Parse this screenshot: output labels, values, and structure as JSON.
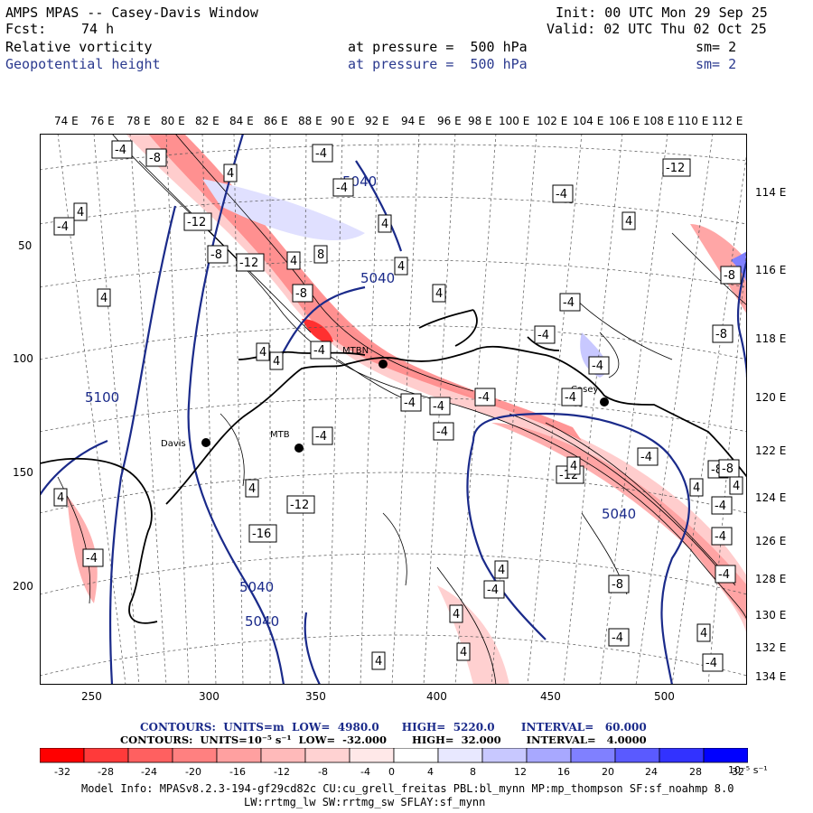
{
  "header": {
    "title": "AMPS MPAS -- Casey-Davis Window",
    "init": "Init: 00 UTC Mon 29 Sep 25",
    "fcst_label": "Fcst:",
    "fcst_value": "74 h",
    "valid": "Valid: 02 UTC Thu 02 Oct 25",
    "field1": {
      "name": "Relative vorticity",
      "level": "at pressure =  500 hPa",
      "smooth": "sm= 2"
    },
    "field2": {
      "name": "Geopotential height",
      "level": "at pressure =  500 hPa",
      "smooth": "sm= 2"
    }
  },
  "map": {
    "top_lon_labels": [
      "74 E",
      "76 E",
      "78 E",
      "80 E",
      "82 E",
      "84 E",
      "86 E",
      "88 E",
      "90 E",
      "92 E",
      "94 E",
      "96 E",
      "98 E",
      "100 E",
      "102 E",
      "104 E",
      "106 E",
      "108 E",
      "110 E",
      "112 E"
    ],
    "right_lon_labels": [
      "114 E",
      "116 E",
      "118 E",
      "120 E",
      "122 E",
      "124 E",
      "126 E",
      "128 E",
      "130 E",
      "132 E",
      "134 E"
    ],
    "x_ticks": [
      "250",
      "300",
      "350",
      "400",
      "450",
      "500"
    ],
    "y_ticks": [
      "50",
      "100",
      "150",
      "200"
    ],
    "stations": [
      {
        "name": "Davis"
      },
      {
        "name": "MTB"
      },
      {
        "name": "MTBN"
      },
      {
        "name": "Casey"
      }
    ],
    "height_labels": [
      "5040",
      "5040",
      "5100",
      "5040",
      "5040",
      "5040"
    ],
    "vort_labels": [
      "-4",
      "-8",
      "4",
      "-4",
      "-12",
      "4",
      "-4",
      "-8",
      "-12",
      "4",
      "4",
      "-4",
      "4",
      "8",
      "-8",
      "4",
      "4",
      "-4",
      "4",
      "-12",
      "-4",
      "-4",
      "-8",
      "-8",
      "-4",
      "4",
      "4",
      "-4",
      "-4",
      "-4",
      "-4",
      "-12",
      "4",
      "-4",
      "-8",
      "-8",
      "-4",
      "4",
      "-4",
      "-4",
      "4",
      "-4",
      "4",
      "-16",
      "-12",
      "-4",
      "-4",
      "-4",
      "4",
      "-8",
      "-4",
      "-4",
      "4",
      "4",
      "4",
      "-4",
      "4",
      "4"
    ],
    "colors": {
      "height_contour": "#1a2a8a",
      "coast": "#000000",
      "grid": "#555555"
    }
  },
  "colorbar": {
    "contours1": "CONTOURS:  UNITS=m  LOW=  4980.0      HIGH=  5220.0       INTERVAL=   60.000",
    "contours2": "CONTOURS:  UNITS=10⁻⁵ s⁻¹  LOW=  -32.000       HIGH=  32.000       INTERVAL=   4.0000",
    "tick_labels": [
      "-32",
      "-28",
      "-24",
      "-20",
      "-16",
      "-12",
      "-8",
      "-4",
      "0",
      "4",
      "8",
      "12",
      "16",
      "20",
      "24",
      "28",
      "32"
    ],
    "units": "10⁻⁵ s⁻¹",
    "colors": [
      "#ff0000",
      "#ff3a3a",
      "#ff6060",
      "#ff8080",
      "#ffa0a0",
      "#ffbaba",
      "#ffd2d2",
      "#ffe8e8",
      "#ffffff",
      "#ffffff",
      "#e8e8ff",
      "#c8c8ff",
      "#a8a8ff",
      "#8080ff",
      "#5a5aff",
      "#3232ff",
      "#0000ff"
    ]
  },
  "footer": {
    "model_info": "Model Info: MPASv8.2.3-194-gf29cd82c CU:cu_grell_freitas PBL:bl_mynn MP:mp_thompson SF:sf_noahmp 8.0",
    "model_info2": "LW:rrtmg_lw SW:rrtmg_sw SFLAY:sf_mynn"
  }
}
